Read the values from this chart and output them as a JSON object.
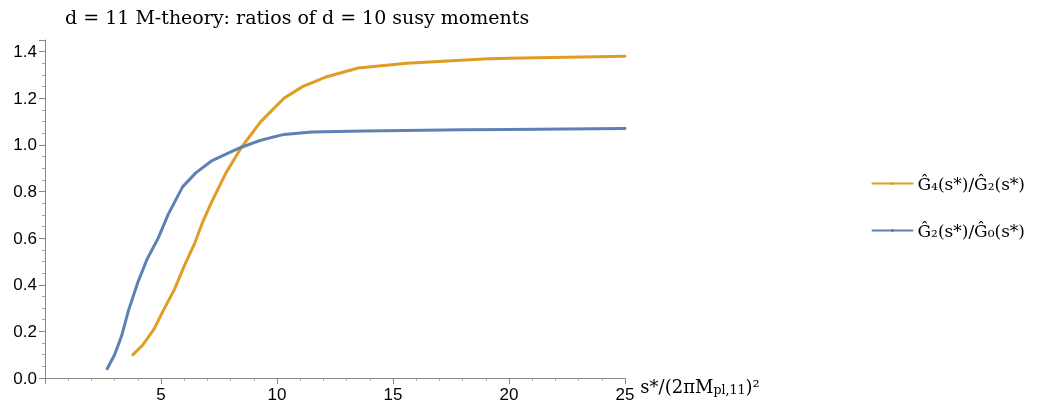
{
  "chart_data": {
    "type": "line",
    "title": "d = 11 M-theory: ratios of d = 10 susy moments",
    "xlabel": "s*/(2πM$_{pl,11}$)²",
    "xlim": [
      0,
      25
    ],
    "xticks": [
      5,
      10,
      15,
      20,
      25
    ],
    "ylim": [
      0,
      1.45
    ],
    "yticks": [
      {
        "value": 0,
        "label": "0.0"
      },
      {
        "value": 0.2,
        "label": "0.2"
      },
      {
        "value": 0.4,
        "label": "0.4"
      },
      {
        "value": 0.6,
        "label": "0.6"
      },
      {
        "value": 0.8,
        "label": "0.8"
      },
      {
        "value": 1,
        "label": "1.0"
      },
      {
        "value": 1.2,
        "label": "1.2"
      },
      {
        "value": 1.4,
        "label": "1.4"
      }
    ],
    "grid": false,
    "legend": "right",
    "marker": "none",
    "line_style": "solid",
    "series": [
      {
        "name": "Ĝ₄(s*)/Ĝ₂(s*)",
        "color": "#e19c24",
        "x": [
          3.79,
          4.2,
          4.7,
          5.1,
          5.58,
          6.0,
          6.46,
          6.8,
          7.16,
          7.8,
          8.47,
          9.3,
          10.3,
          11.1,
          12.07,
          13.5,
          15.6,
          19.1,
          25
        ],
        "values": [
          0.1,
          0.14,
          0.21,
          0.29,
          0.38,
          0.48,
          0.58,
          0.67,
          0.75,
          0.88,
          0.99,
          1.1,
          1.2,
          1.25,
          1.29,
          1.33,
          1.35,
          1.37,
          1.38
        ]
      },
      {
        "name": "Ĝ₂(s*)/Ĝ₀(s*)",
        "color": "#5e81b5",
        "x": [
          2.68,
          3.0,
          3.3,
          3.6,
          4.0,
          4.4,
          4.88,
          5.3,
          5.93,
          6.5,
          7.16,
          7.8,
          8.47,
          9.3,
          10.3,
          11.5,
          13.8,
          18,
          25
        ],
        "values": [
          0.04,
          0.1,
          0.18,
          0.29,
          0.41,
          0.51,
          0.6,
          0.7,
          0.82,
          0.88,
          0.93,
          0.96,
          0.99,
          1.02,
          1.045,
          1.055,
          1.06,
          1.065,
          1.07
        ]
      }
    ]
  }
}
